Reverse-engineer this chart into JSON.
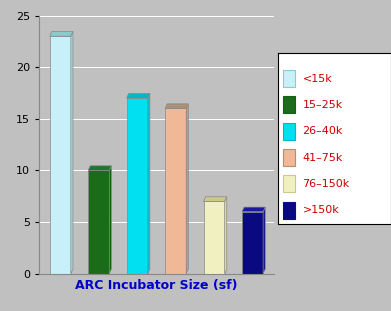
{
  "categories": [
    "<15k",
    "15-25k",
    "26-40k",
    "41-75k",
    "76-150k",
    ">150k"
  ],
  "values": [
    23,
    10,
    17,
    16,
    7,
    6
  ],
  "bar_colors": [
    "#c8f0f8",
    "#1a6b1a",
    "#00e0f0",
    "#f0b896",
    "#f0f0c0",
    "#0a0a80"
  ],
  "bar_top_colors": [
    "#88cccc",
    "#1a7a2a",
    "#00b8cc",
    "#b09070",
    "#c8c890",
    "#1a1aa0"
  ],
  "bar_side_colors": [
    "#a0d8e0",
    "#156015",
    "#00c0d0",
    "#c89878",
    "#d8d8a0",
    "#0c0c90"
  ],
  "xlabel": "ARC Incubator Size (sf)",
  "ylabel": "",
  "ylim": [
    0,
    25
  ],
  "yticks": [
    0,
    5,
    10,
    15,
    20,
    25
  ],
  "background_color": "#c0c0c0",
  "plot_bg_color": "#c0c0c0",
  "xlabel_color": "#0000cc",
  "legend_labels": [
    "<15k",
    "15–25k",
    "26–40k",
    "41–75k",
    "76–150k",
    ">150k"
  ],
  "legend_face_colors": [
    "#c8f0f8",
    "#1a6b1a",
    "#00e0f0",
    "#f0b896",
    "#f0f0c0",
    "#0a0a80"
  ],
  "legend_edge_colors": [
    "#88cccc",
    "#156015",
    "#00b8cc",
    "#b09070",
    "#c8c890",
    "#0c0c90"
  ],
  "xlabel_fontsize": 9,
  "ytick_fontsize": 8,
  "legend_fontsize": 8
}
